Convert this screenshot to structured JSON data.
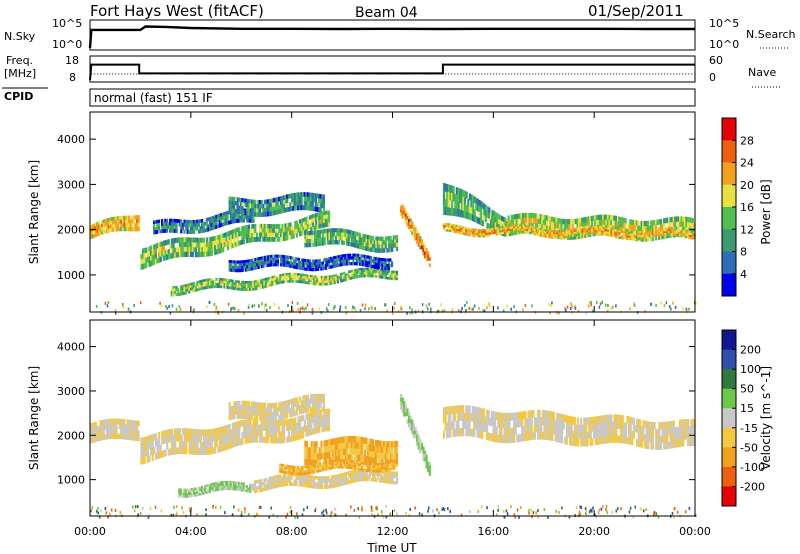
{
  "header": {
    "title": "Fort Hays West (fitACF)",
    "beam": "Beam 04",
    "date": "01/Sep/2011"
  },
  "nsky_panel": {
    "left_label": "N.Sky",
    "left_ticks": [
      "10^5",
      "10^0"
    ],
    "right_label": "N.Search",
    "right_ticks": [
      "10^5",
      "10^0"
    ]
  },
  "freq_panel": {
    "left_label_1": "Freq.",
    "left_label_2": "[MHz]",
    "left_ticks": [
      "18",
      "8"
    ],
    "right_label": "Nave",
    "right_ticks": [
      "60",
      "0"
    ]
  },
  "cpid": {
    "label": "CPID",
    "mode": "normal (fast) 151 IF"
  },
  "colors": {
    "power_scale": [
      "#0000ee",
      "#2a6fb8",
      "#3c9a6c",
      "#4fbf4f",
      "#e8e040",
      "#f2a020",
      "#ee6010",
      "#e60000"
    ],
    "velocity_scale": [
      "#e60000",
      "#ee6010",
      "#f2a020",
      "#f5c842",
      "#c8c8c8",
      "#6dc84a",
      "#2f7a3a",
      "#3050b0",
      "#101890"
    ]
  },
  "chart_data": [
    {
      "type": "line",
      "name": "n-sky-summary",
      "ylabel": "N.Sky",
      "yscale": "log",
      "ylim": [
        1,
        100000
      ],
      "xlim": [
        0,
        24
      ],
      "x": [
        0,
        0.05,
        1.0,
        2.0,
        2.2,
        3.0,
        4.0,
        6.0,
        8.0,
        10.0,
        12.0,
        14.0,
        16.0,
        18.0,
        20.0,
        22.0,
        24.0
      ],
      "y": [
        1,
        6000,
        6000,
        6000,
        30000,
        25000,
        15000,
        10000,
        10000,
        9000,
        10000,
        9000,
        10000,
        10000,
        10000,
        9000,
        9000
      ]
    },
    {
      "type": "line",
      "name": "frequency-summary",
      "ylabel": "Freq. [MHz]",
      "ylim": [
        8,
        18
      ],
      "y2label": "Nave",
      "y2lim": [
        0,
        60
      ],
      "xlim": [
        0,
        24
      ],
      "series": [
        {
          "x": [
            0,
            0.05,
            1.95,
            1.95,
            14.0,
            14.0,
            24.0
          ],
          "y": [
            8,
            15,
            15,
            11,
            11,
            15,
            15
          ]
        }
      ]
    },
    {
      "type": "heatmap",
      "name": "power",
      "xlabel": "Time UT",
      "ylabel": "Slant Range [km]",
      "xlim": [
        0,
        24
      ],
      "ylim": [
        180,
        4600
      ],
      "x_ticks": [
        "00:00",
        "04:00",
        "08:00",
        "12:00",
        "16:00",
        "20:00",
        "00:00"
      ],
      "y_ticks": [
        "1000",
        "2000",
        "3000",
        "4000"
      ],
      "colorbar_label": "Power [dB]",
      "colorbar_ticks": [
        "4",
        "8",
        "12",
        "16",
        "20",
        "24",
        "28"
      ],
      "colorbar_range": [
        0,
        30
      ],
      "bands": [
        {
          "x0": 0.0,
          "x1": 1.95,
          "r0": 1950,
          "r1": 2200,
          "w0": 300,
          "w1": 350,
          "value": 22
        },
        {
          "x0": 2.0,
          "x1": 9.5,
          "r0": 1400,
          "r1": 2200,
          "w0": 450,
          "w1": 350,
          "value": 16
        },
        {
          "x0": 2.5,
          "x1": 6.5,
          "r0": 2000,
          "r1": 2300,
          "w0": 300,
          "w1": 300,
          "value": 10
        },
        {
          "x0": 5.5,
          "x1": 9.3,
          "r0": 2500,
          "r1": 2600,
          "w0": 350,
          "w1": 400,
          "value": 12
        },
        {
          "x0": 3.2,
          "x1": 12.2,
          "r0": 700,
          "r1": 1050,
          "w0": 220,
          "w1": 200,
          "value": 16
        },
        {
          "x0": 5.5,
          "x1": 12.0,
          "r0": 1250,
          "r1": 1300,
          "w0": 250,
          "w1": 250,
          "value": 8
        },
        {
          "x0": 8.5,
          "x1": 12.2,
          "r0": 1850,
          "r1": 1700,
          "w0": 350,
          "w1": 350,
          "value": 14
        },
        {
          "x0": 12.3,
          "x1": 13.5,
          "r0": 2400,
          "r1": 1300,
          "w0": 300,
          "w1": 280,
          "value": 24
        },
        {
          "x0": 14.0,
          "x1": 16.5,
          "r0": 2700,
          "r1": 2100,
          "w0": 700,
          "w1": 400,
          "value": 14
        },
        {
          "x0": 16.5,
          "x1": 24.0,
          "r0": 2100,
          "r1": 2000,
          "w0": 450,
          "w1": 450,
          "value": 18
        },
        {
          "x0": 14.0,
          "x1": 24.0,
          "r0": 2000,
          "r1": 1900,
          "w0": 180,
          "w1": 180,
          "value": 22
        }
      ]
    },
    {
      "type": "heatmap",
      "name": "velocity",
      "xlabel": "Time UT",
      "ylabel": "Slant Range [km]",
      "xlim": [
        0,
        24
      ],
      "ylim": [
        180,
        4600
      ],
      "x_ticks": [
        "00:00",
        "04:00",
        "08:00",
        "12:00",
        "16:00",
        "20:00",
        "00:00"
      ],
      "y_ticks": [
        "1000",
        "2000",
        "3000",
        "4000"
      ],
      "colorbar_label": "Velocity [m s^-1]",
      "colorbar_ticks": [
        "200",
        "100",
        "50",
        "15",
        "-15",
        "-50",
        "-100",
        "-200"
      ],
      "bands": [
        {
          "x0": 0.0,
          "x1": 1.95,
          "r0": 2050,
          "r1": 2150,
          "w0": 450,
          "w1": 450,
          "value": 0
        },
        {
          "x0": 2.0,
          "x1": 9.5,
          "r0": 1700,
          "r1": 2300,
          "w0": 600,
          "w1": 500,
          "value": 0
        },
        {
          "x0": 5.5,
          "x1": 9.3,
          "r0": 2500,
          "r1": 2700,
          "w0": 400,
          "w1": 400,
          "value": 0
        },
        {
          "x0": 3.5,
          "x1": 6.5,
          "r0": 750,
          "r1": 850,
          "w0": 200,
          "w1": 200,
          "value": 30
        },
        {
          "x0": 6.5,
          "x1": 12.2,
          "r0": 900,
          "r1": 1100,
          "w0": 280,
          "w1": 280,
          "value": 0
        },
        {
          "x0": 8.5,
          "x1": 12.2,
          "r0": 1650,
          "r1": 1650,
          "w0": 550,
          "w1": 550,
          "value": -40
        },
        {
          "x0": 7.5,
          "x1": 12.2,
          "r0": 1250,
          "r1": 1350,
          "w0": 200,
          "w1": 200,
          "value": -40
        },
        {
          "x0": 12.3,
          "x1": 13.5,
          "r0": 2700,
          "r1": 1200,
          "w0": 350,
          "w1": 300,
          "value": 30
        },
        {
          "x0": 14.0,
          "x1": 24.0,
          "r0": 2300,
          "r1": 2000,
          "w0": 700,
          "w1": 600,
          "value": 0
        }
      ]
    }
  ],
  "footer": {
    "x_axis_title": "Time UT"
  }
}
